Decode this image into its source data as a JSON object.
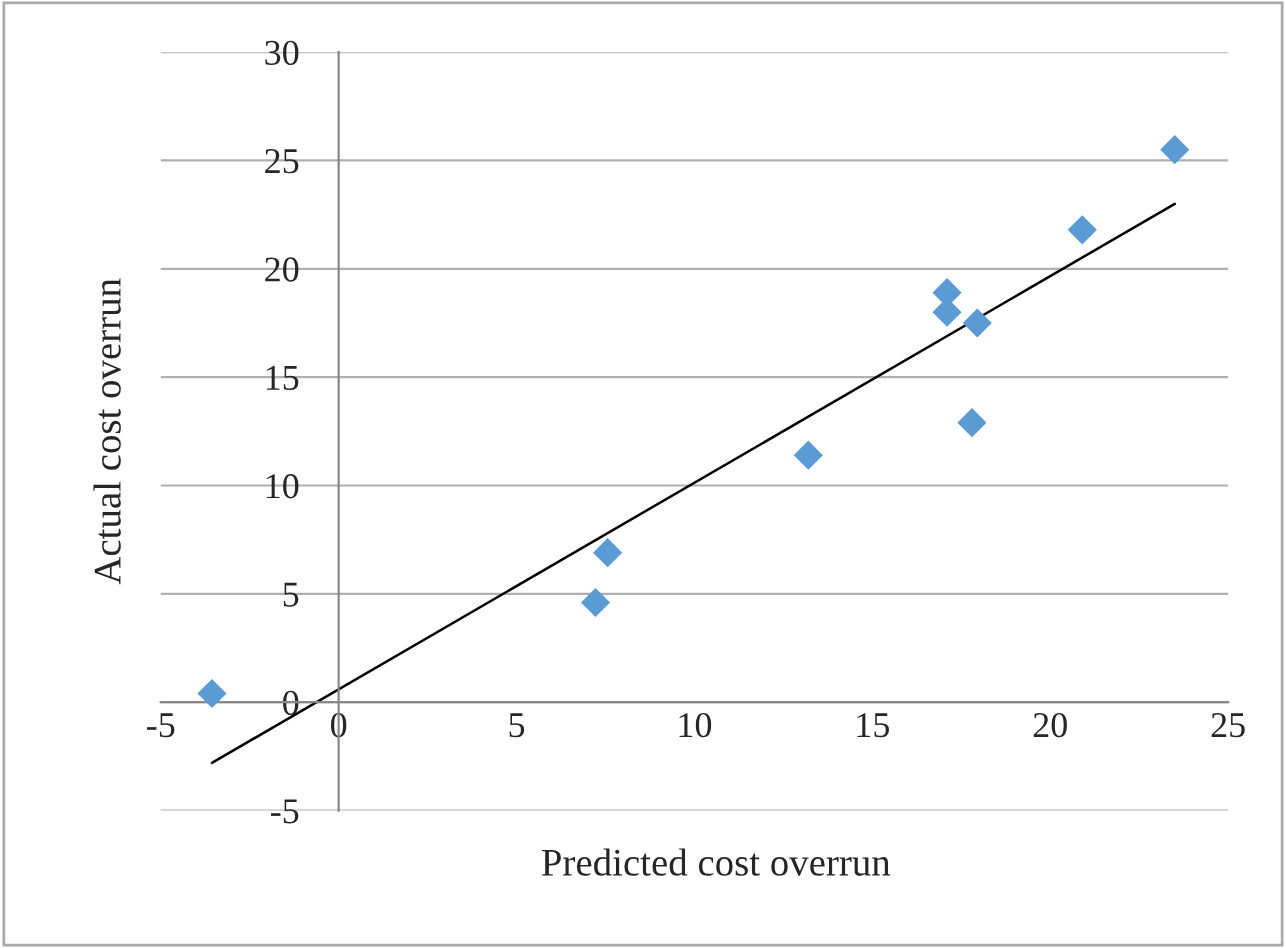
{
  "chart_data": {
    "type": "scatter",
    "xlabel": "Predicted cost overrun",
    "ylabel": "Actual cost overrun",
    "x": [
      -3.56,
      7.22,
      7.56,
      13.2,
      17.1,
      17.1,
      17.95,
      17.8,
      20.9,
      23.5
    ],
    "series": [
      {
        "type": "scatter",
        "color": "#5b9bd5",
        "marker": "diamond",
        "values": [
          0.4,
          4.6,
          6.9,
          11.4,
          18.9,
          18.0,
          17.5,
          12.9,
          21.8,
          25.5
        ]
      },
      {
        "type": "line",
        "color": "#000000",
        "line_style": "solid",
        "marker": "none",
        "x": [
          -3.56,
          23.5
        ],
        "values": [
          -2.8,
          23.0
        ]
      }
    ],
    "xlim": [
      -5,
      25
    ],
    "ylim": [
      -5,
      30
    ],
    "xticks": [
      -5,
      0,
      5,
      10,
      15,
      20,
      25
    ],
    "yticks": [
      -5,
      0,
      5,
      10,
      15,
      20,
      25,
      30
    ],
    "grid": "y",
    "legend": false
  }
}
